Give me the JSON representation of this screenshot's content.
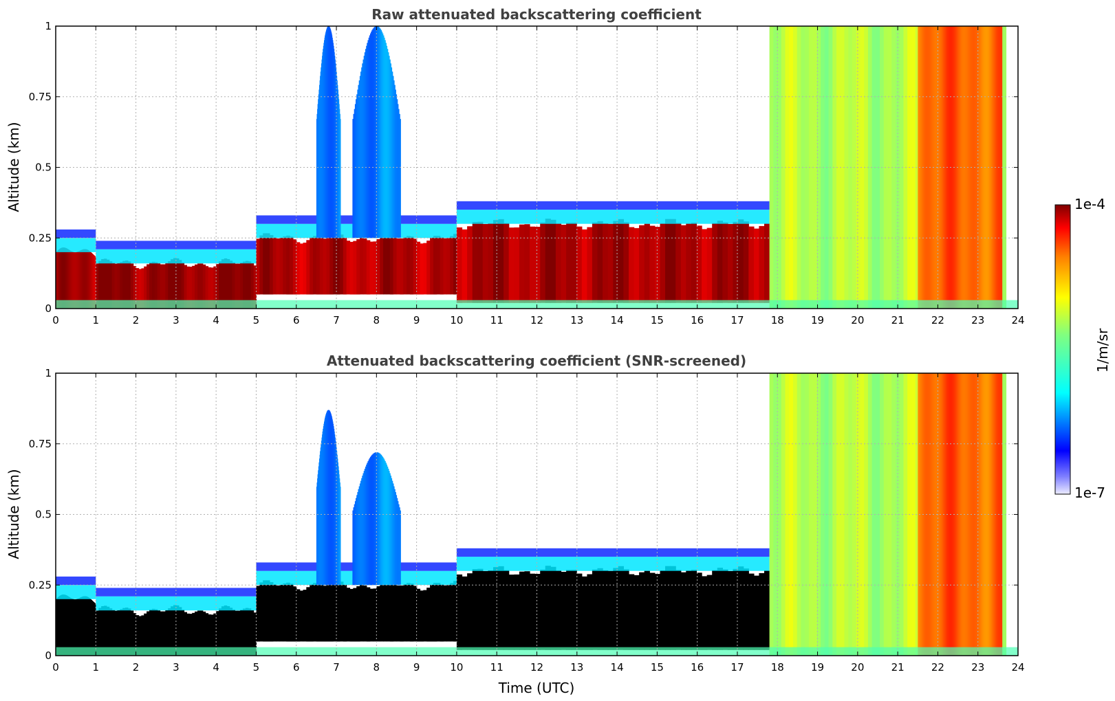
{
  "colors": {
    "jet": [
      "#000080",
      "#0000ff",
      "#0080ff",
      "#00ffff",
      "#80ff80",
      "#ffff00",
      "#ff8000",
      "#ff0000",
      "#800000"
    ],
    "background": "#ffffff",
    "masked": "#000000"
  },
  "chart_data": [
    {
      "type": "heatmap",
      "title": "Raw attenuated backscattering coefficient",
      "xlabel": "",
      "ylabel": "Altitude (km)",
      "xlim": [
        0,
        24
      ],
      "ylim": [
        0,
        1
      ],
      "xticks": [
        "0",
        "1",
        "2",
        "3",
        "4",
        "5",
        "6",
        "7",
        "8",
        "9",
        "10",
        "11",
        "12",
        "13",
        "14",
        "15",
        "16",
        "17",
        "18",
        "19",
        "20",
        "21",
        "22",
        "23",
        "24"
      ],
      "yticks": [
        "0",
        "0.25",
        "0.5",
        "0.75",
        "1"
      ],
      "grid": true,
      "regions": [
        {
          "kind": "layer",
          "t": [
            0,
            1
          ],
          "z": [
            0,
            0.2
          ],
          "level": 0.95
        },
        {
          "kind": "layer",
          "t": [
            1,
            5
          ],
          "z": [
            0,
            0.16
          ],
          "level": 0.98
        },
        {
          "kind": "layer",
          "t": [
            5,
            10
          ],
          "z": [
            0.05,
            0.25
          ],
          "level": 0.95
        },
        {
          "kind": "layer",
          "t": [
            10,
            17.8
          ],
          "z": [
            0.02,
            0.3
          ],
          "level": 0.96
        },
        {
          "kind": "plume",
          "t": [
            6.5,
            7.1
          ],
          "z": [
            0.25,
            1.0
          ],
          "level": 0.25
        },
        {
          "kind": "plume",
          "t": [
            7.4,
            8.6
          ],
          "z": [
            0.25,
            1.0
          ],
          "level": 0.25
        },
        {
          "kind": "cloud",
          "t": [
            17.8,
            23.7
          ],
          "z": [
            0,
            1.0
          ],
          "level": 0.55
        },
        {
          "kind": "rain",
          "t": [
            21.5,
            23.6
          ],
          "z": [
            0,
            1.0
          ],
          "level": 0.78
        }
      ]
    },
    {
      "type": "heatmap",
      "title": "Attenuated backscattering coefficient (SNR-screened)",
      "xlabel": "Time (UTC)",
      "ylabel": "Altitude (km)",
      "xlim": [
        0,
        24
      ],
      "ylim": [
        0,
        1
      ],
      "xticks": [
        "0",
        "1",
        "2",
        "3",
        "4",
        "5",
        "6",
        "7",
        "8",
        "9",
        "10",
        "11",
        "12",
        "13",
        "14",
        "15",
        "16",
        "17",
        "18",
        "19",
        "20",
        "21",
        "22",
        "23",
        "24"
      ],
      "yticks": [
        "0",
        "0.25",
        "0.5",
        "0.75",
        "1"
      ],
      "grid": true,
      "regions": [
        {
          "kind": "layer",
          "t": [
            0,
            1
          ],
          "z": [
            0,
            0.2
          ],
          "level": 1.0
        },
        {
          "kind": "layer",
          "t": [
            1,
            5
          ],
          "z": [
            0,
            0.16
          ],
          "level": 1.0
        },
        {
          "kind": "layer",
          "t": [
            5,
            10
          ],
          "z": [
            0.05,
            0.25
          ],
          "level": 1.0
        },
        {
          "kind": "layer",
          "t": [
            10,
            17.8
          ],
          "z": [
            0.02,
            0.3
          ],
          "level": 1.0
        },
        {
          "kind": "plume",
          "t": [
            6.5,
            7.1
          ],
          "z": [
            0.25,
            0.87
          ],
          "level": 0.25
        },
        {
          "kind": "plume",
          "t": [
            7.4,
            8.6
          ],
          "z": [
            0.25,
            0.72
          ],
          "level": 0.25
        },
        {
          "kind": "cloud",
          "t": [
            17.8,
            23.7
          ],
          "z": [
            0,
            1.0
          ],
          "level": 0.55
        },
        {
          "kind": "rain",
          "t": [
            21.5,
            23.6
          ],
          "z": [
            0,
            1.0
          ],
          "level": 0.78
        }
      ]
    }
  ],
  "colorbar": {
    "max_label": "1e-4",
    "min_label": "1e-7",
    "label": "1/m/sr",
    "range": [
      1e-07,
      0.0001
    ],
    "scale": "log"
  }
}
